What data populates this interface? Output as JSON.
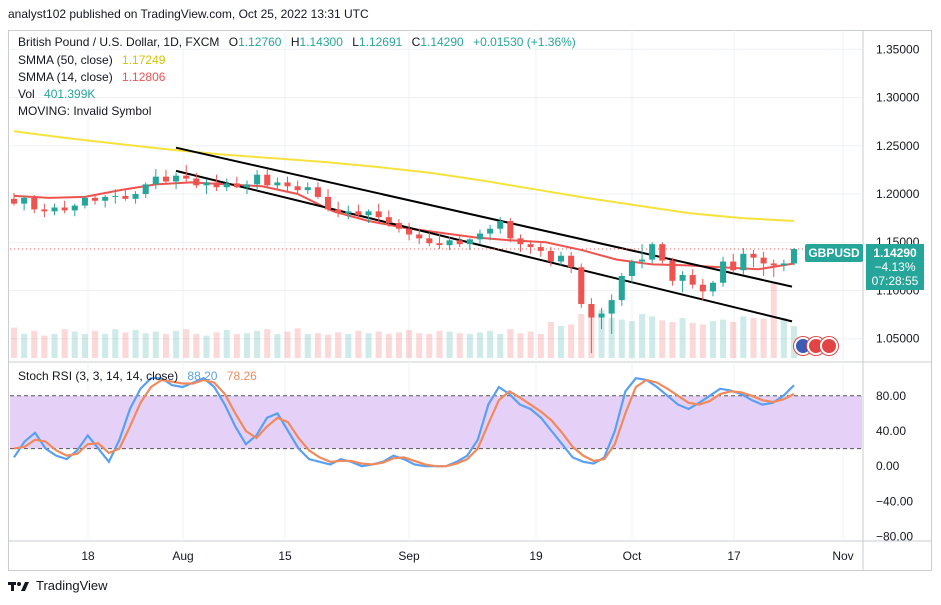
{
  "header": {
    "publisher": "analyst102 published on TradingView.com, Oct 25, 2022 13:31 UTC"
  },
  "legend": {
    "symbol": "British Pound / U.S. Dollar, 1D, FXCM",
    "o_label": "O",
    "o_value": "1.12760",
    "h_label": "H",
    "h_value": "1.14300",
    "l_label": "L",
    "l_value": "1.12691",
    "c_label": "C",
    "c_value": "1.14290",
    "change": "+0.01530 (+1.36%)",
    "sma50_label": "SMMA (50, close)",
    "sma50_value": "1.17249",
    "sma14_label": "SMMA (14, close)",
    "sma14_value": "1.12806",
    "vol_label": "Vol",
    "vol_value": "401.399K",
    "moving_label": "MOVING: Invalid Symbol",
    "rsi_label": "Stoch RSI (3, 3, 14, 14, close)",
    "rsi_k": "88.20",
    "rsi_d": "78.26"
  },
  "price_tag": {
    "symbol": "GBPUSD",
    "price": "1.14290",
    "pct": "−4.13%",
    "countdown": "07:28:55"
  },
  "footer": {
    "brand": "TradingView"
  },
  "colors": {
    "up": "#26a69a",
    "down": "#ef5350",
    "sma50": "#f5e23b",
    "sma14": "#ef5350",
    "trend": "#000000",
    "rsi_k": "#5aa0f0",
    "rsi_d": "#f08a5d",
    "rsi_band": "#e1c9f7"
  },
  "chart_data": [
    {
      "type": "candlestick",
      "title": "British Pound / U.S. Dollar, 1D, FXCM",
      "x_ticks": [
        "18",
        "Aug",
        "15",
        "Sep",
        "19",
        "Oct",
        "17",
        "Nov"
      ],
      "y_ticks": [
        "1.35000",
        "1.30000",
        "1.25000",
        "1.20000",
        "1.15000",
        "1.10000",
        "1.05000"
      ],
      "ylim": [
        1.03,
        1.37
      ],
      "candles": [
        [
          1.195,
          1.201,
          1.188,
          1.19
        ],
        [
          1.19,
          1.198,
          1.183,
          1.196
        ],
        [
          1.196,
          1.199,
          1.18,
          1.184
        ],
        [
          1.184,
          1.19,
          1.176,
          1.182
        ],
        [
          1.182,
          1.19,
          1.178,
          1.186
        ],
        [
          1.186,
          1.193,
          1.18,
          1.183
        ],
        [
          1.183,
          1.19,
          1.177,
          1.188
        ],
        [
          1.188,
          1.198,
          1.185,
          1.196
        ],
        [
          1.196,
          1.2,
          1.189,
          1.193
        ],
        [
          1.193,
          1.199,
          1.186,
          1.197
        ],
        [
          1.197,
          1.205,
          1.19,
          1.198
        ],
        [
          1.198,
          1.206,
          1.193,
          1.195
        ],
        [
          1.195,
          1.203,
          1.19,
          1.2
        ],
        [
          1.2,
          1.212,
          1.196,
          1.21
        ],
        [
          1.21,
          1.226,
          1.205,
          1.218
        ],
        [
          1.218,
          1.225,
          1.21,
          1.213
        ],
        [
          1.213,
          1.222,
          1.205,
          1.219
        ],
        [
          1.219,
          1.23,
          1.212,
          1.216
        ],
        [
          1.216,
          1.222,
          1.206,
          1.209
        ],
        [
          1.209,
          1.215,
          1.2,
          1.212
        ],
        [
          1.212,
          1.22,
          1.203,
          1.207
        ],
        [
          1.207,
          1.216,
          1.203,
          1.211
        ],
        [
          1.211,
          1.218,
          1.206,
          1.207
        ],
        [
          1.207,
          1.214,
          1.2,
          1.21
        ],
        [
          1.21,
          1.225,
          1.205,
          1.22
        ],
        [
          1.22,
          1.226,
          1.206,
          1.209
        ],
        [
          1.209,
          1.217,
          1.205,
          1.212
        ],
        [
          1.212,
          1.218,
          1.203,
          1.208
        ],
        [
          1.208,
          1.214,
          1.2,
          1.204
        ],
        [
          1.204,
          1.212,
          1.2,
          1.207
        ],
        [
          1.207,
          1.212,
          1.195,
          1.197
        ],
        [
          1.197,
          1.205,
          1.182,
          1.184
        ],
        [
          1.184,
          1.192,
          1.176,
          1.18
        ],
        [
          1.18,
          1.188,
          1.174,
          1.182
        ],
        [
          1.182,
          1.189,
          1.175,
          1.178
        ],
        [
          1.178,
          1.184,
          1.17,
          1.182
        ],
        [
          1.182,
          1.19,
          1.172,
          1.176
        ],
        [
          1.176,
          1.183,
          1.166,
          1.17
        ],
        [
          1.17,
          1.174,
          1.16,
          1.164
        ],
        [
          1.164,
          1.17,
          1.152,
          1.158
        ],
        [
          1.158,
          1.164,
          1.148,
          1.154
        ],
        [
          1.154,
          1.16,
          1.146,
          1.149
        ],
        [
          1.149,
          1.158,
          1.143,
          1.147
        ],
        [
          1.147,
          1.156,
          1.142,
          1.152
        ],
        [
          1.152,
          1.158,
          1.145,
          1.148
        ],
        [
          1.148,
          1.154,
          1.142,
          1.153
        ],
        [
          1.153,
          1.163,
          1.148,
          1.159
        ],
        [
          1.159,
          1.168,
          1.152,
          1.164
        ],
        [
          1.164,
          1.176,
          1.159,
          1.172
        ],
        [
          1.172,
          1.175,
          1.15,
          1.154
        ],
        [
          1.154,
          1.158,
          1.14,
          1.148
        ],
        [
          1.148,
          1.152,
          1.138,
          1.145
        ],
        [
          1.145,
          1.149,
          1.135,
          1.141
        ],
        [
          1.141,
          1.145,
          1.125,
          1.13
        ],
        [
          1.13,
          1.14,
          1.126,
          1.136
        ],
        [
          1.136,
          1.14,
          1.118,
          1.124
        ],
        [
          1.124,
          1.128,
          1.082,
          1.086
        ],
        [
          1.086,
          1.092,
          1.035,
          1.072
        ],
        [
          1.072,
          1.082,
          1.06,
          1.076
        ],
        [
          1.076,
          1.096,
          1.055,
          1.09
        ],
        [
          1.09,
          1.118,
          1.084,
          1.115
        ],
        [
          1.115,
          1.132,
          1.108,
          1.13
        ],
        [
          1.13,
          1.148,
          1.123,
          1.132
        ],
        [
          1.132,
          1.15,
          1.128,
          1.148
        ],
        [
          1.148,
          1.15,
          1.128,
          1.131
        ],
        [
          1.131,
          1.134,
          1.105,
          1.11
        ],
        [
          1.11,
          1.12,
          1.098,
          1.116
        ],
        [
          1.116,
          1.122,
          1.102,
          1.106
        ],
        [
          1.106,
          1.112,
          1.09,
          1.099
        ],
        [
          1.099,
          1.11,
          1.094,
          1.108
        ],
        [
          1.108,
          1.135,
          1.104,
          1.13
        ],
        [
          1.13,
          1.138,
          1.118,
          1.121
        ],
        [
          1.121,
          1.144,
          1.116,
          1.138
        ],
        [
          1.138,
          1.142,
          1.124,
          1.134
        ],
        [
          1.134,
          1.14,
          1.115,
          1.128
        ],
        [
          1.128,
          1.132,
          1.114,
          1.126
        ],
        [
          1.126,
          1.132,
          1.12,
          1.128
        ],
        [
          1.128,
          1.144,
          1.126,
          1.143
        ]
      ],
      "volume": [
        0.38,
        0.3,
        0.34,
        0.28,
        0.3,
        0.36,
        0.33,
        0.3,
        0.34,
        0.3,
        0.36,
        0.32,
        0.35,
        0.31,
        0.33,
        0.3,
        0.34,
        0.36,
        0.3,
        0.28,
        0.32,
        0.35,
        0.3,
        0.31,
        0.34,
        0.36,
        0.3,
        0.33,
        0.37,
        0.3,
        0.31,
        0.29,
        0.32,
        0.3,
        0.34,
        0.31,
        0.33,
        0.3,
        0.32,
        0.35,
        0.31,
        0.3,
        0.34,
        0.33,
        0.31,
        0.3,
        0.32,
        0.34,
        0.3,
        0.36,
        0.31,
        0.33,
        0.3,
        0.45,
        0.4,
        0.42,
        0.55,
        0.65,
        0.6,
        0.5,
        0.48,
        0.46,
        0.55,
        0.52,
        0.47,
        0.45,
        0.5,
        0.44,
        0.42,
        0.46,
        0.48,
        0.45,
        0.52,
        0.5,
        0.49,
        0.95,
        0.5,
        0.4
      ],
      "sma50": [
        1.265,
        1.258,
        1.252,
        1.246,
        1.241,
        1.237,
        1.233,
        1.228,
        1.222,
        1.214,
        1.205,
        1.196,
        1.188,
        1.18,
        1.175,
        1.172
      ],
      "sma14": [
        1.198,
        1.196,
        1.197,
        1.204,
        1.21,
        1.212,
        1.21,
        1.208,
        1.2,
        1.182,
        1.172,
        1.165,
        1.16,
        1.155,
        1.152,
        1.15,
        1.142,
        1.132,
        1.127,
        1.126,
        1.124,
        1.122,
        1.128
      ],
      "trendline_upper": [
        [
          1.248,
          0.0
        ],
        [
          1.104,
          1.0
        ]
      ],
      "trendline_lower": [
        [
          1.224,
          0.0
        ],
        [
          1.068,
          1.0
        ]
      ]
    },
    {
      "type": "line",
      "title": "Stoch RSI (3, 3, 14, 14, close)",
      "y_ticks": [
        "80.00",
        "40.00",
        "0.00",
        "−40.00",
        "−80.00"
      ],
      "ylim": [
        -85,
        115
      ],
      "band": [
        20,
        80
      ],
      "series": [
        {
          "name": "K",
          "values": [
            10,
            28,
            38,
            20,
            12,
            8,
            18,
            35,
            20,
            5,
            30,
            65,
            88,
            100,
            100,
            92,
            90,
            95,
            100,
            90,
            70,
            45,
            25,
            35,
            55,
            60,
            40,
            20,
            8,
            5,
            2,
            8,
            5,
            0,
            2,
            5,
            12,
            8,
            2,
            0,
            0,
            0,
            5,
            12,
            30,
            70,
            90,
            82,
            70,
            65,
            55,
            40,
            25,
            10,
            5,
            3,
            10,
            40,
            85,
            100,
            98,
            90,
            80,
            70,
            65,
            72,
            80,
            88,
            86,
            82,
            75,
            70,
            72,
            80,
            92
          ]
        },
        {
          "name": "D",
          "values": [
            20,
            22,
            30,
            28,
            18,
            12,
            14,
            25,
            26,
            15,
            20,
            45,
            72,
            90,
            98,
            96,
            94,
            94,
            98,
            95,
            82,
            60,
            40,
            32,
            45,
            55,
            50,
            32,
            18,
            10,
            5,
            6,
            6,
            3,
            2,
            4,
            9,
            10,
            6,
            2,
            0,
            0,
            3,
            8,
            20,
            48,
            75,
            85,
            78,
            70,
            62,
            52,
            38,
            22,
            12,
            6,
            8,
            25,
            60,
            90,
            98,
            95,
            88,
            80,
            72,
            70,
            74,
            82,
            85,
            84,
            80,
            75,
            73,
            76,
            82
          ]
        }
      ]
    }
  ]
}
